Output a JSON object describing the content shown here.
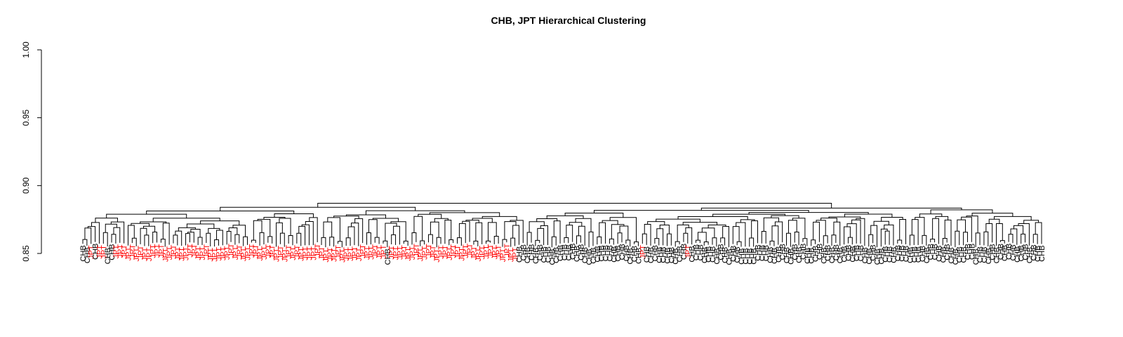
{
  "chart_data": {
    "type": "dendrogram",
    "title": "CHB, JPT Hierarchical Clustering",
    "xlabel": "",
    "ylabel": "",
    "ylim": [
      0.85,
      1.0
    ],
    "yticks": [
      0.85,
      0.9,
      0.95,
      1.0
    ],
    "ytick_labels": [
      "0.85",
      "0.90",
      "0.95",
      "1.00"
    ],
    "grid": false,
    "legend": "none",
    "groups": [
      {
        "label": "CHB",
        "color": "#000000"
      },
      {
        "label": "JPT",
        "color": "#ff0000"
      }
    ],
    "leaves": [
      "CHB",
      "CHB",
      "JPT",
      "CHB",
      "JPT",
      "JPT",
      "CHB",
      "CHB",
      "JPT",
      "JPT",
      "JPT",
      "JPT",
      "JPT",
      "JPT",
      "JPT",
      "JPT",
      "JPT",
      "JPT",
      "JPT",
      "JPT",
      "JPT",
      "JPT",
      "JPT",
      "JPT",
      "JPT",
      "JPT",
      "JPT",
      "JPT",
      "JPT",
      "JPT",
      "JPT",
      "JPT",
      "JPT",
      "JPT",
      "JPT",
      "JPT",
      "JPT",
      "JPT",
      "JPT",
      "JPT",
      "JPT",
      "JPT",
      "JPT",
      "JPT",
      "JPT",
      "JPT",
      "JPT",
      "JPT",
      "JPT",
      "JPT",
      "JPT",
      "JPT",
      "JPT",
      "JPT",
      "JPT",
      "JPT",
      "JPT",
      "JPT",
      "JPT",
      "JPT",
      "JPT",
      "JPT",
      "JPT",
      "JPT",
      "JPT",
      "JPT",
      "JPT",
      "JPT",
      "JPT",
      "JPT",
      "JPT",
      "JPT",
      "JPT",
      "JPT",
      "CHB",
      "JPT",
      "JPT",
      "JPT",
      "JPT",
      "JPT",
      "JPT",
      "JPT",
      "JPT",
      "JPT",
      "JPT",
      "JPT",
      "JPT",
      "JPT",
      "JPT",
      "JPT",
      "JPT",
      "JPT",
      "JPT",
      "JPT",
      "JPT",
      "JPT",
      "JPT",
      "JPT",
      "JPT",
      "JPT",
      "JPT",
      "JPT",
      "JPT",
      "JPT",
      "JPT",
      "JPT",
      "CHB",
      "CHB",
      "CHB",
      "CHB",
      "CHB",
      "CHB",
      "CHB",
      "CHB",
      "CHB",
      "CHB",
      "CHB",
      "CHB",
      "CHB",
      "CHB",
      "CHB",
      "CHB",
      "CHB",
      "CHB",
      "CHB",
      "CHB",
      "CHB",
      "CHB",
      "CHB",
      "CHB",
      "CHB",
      "CHB",
      "CHB",
      "CHB",
      "CHB",
      "CHB",
      "JPT",
      "CHB",
      "CHB",
      "CHB",
      "CHB",
      "CHB",
      "CHB",
      "CHB",
      "CHB",
      "CHB",
      "CHB",
      "JPT",
      "CHB",
      "CHB",
      "CHB",
      "CHB",
      "CHB",
      "CHB",
      "CHB",
      "CHB",
      "CHB",
      "CHB",
      "CHB",
      "CHB",
      "CHB",
      "CHB",
      "CHB",
      "CHB",
      "CHB",
      "CHB",
      "CHB",
      "CHB",
      "CHB",
      "CHB",
      "CHB",
      "CHB",
      "CHB",
      "CHB",
      "CHB",
      "CHB",
      "CHB",
      "CHB",
      "CHB",
      "CHB",
      "CHB",
      "CHB",
      "CHB",
      "CHB",
      "CHB",
      "CHB",
      "CHB",
      "CHB",
      "CHB",
      "CHB",
      "CHB",
      "CHB",
      "CHB",
      "CHB",
      "CHB",
      "CHB",
      "CHB",
      "CHB",
      "CHB",
      "CHB",
      "CHB",
      "CHB",
      "CHB",
      "CHB",
      "CHB",
      "CHB",
      "CHB",
      "CHB",
      "CHB",
      "CHB",
      "CHB",
      "CHB",
      "CHB",
      "CHB",
      "CHB",
      "CHB",
      "CHB",
      "CHB",
      "CHB",
      "CHB",
      "CHB",
      "CHB",
      "CHB",
      "CHB",
      "CHB",
      "CHB",
      "CHB",
      "CHB",
      "CHB",
      "CHB",
      "CHB",
      "CHB",
      "CHB",
      "CHB"
    ],
    "root_height": 0.887,
    "main_split_height": 0.885
  }
}
